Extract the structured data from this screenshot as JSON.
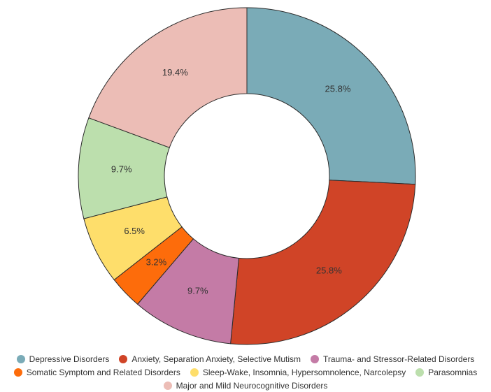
{
  "chart_data": {
    "type": "pie",
    "subtype": "donut",
    "title": "",
    "legend_position": "bottom",
    "slices": [
      {
        "label": "Depressive Disorders",
        "value": 25.8,
        "display": "25.8%",
        "color": "#7aabb7"
      },
      {
        "label": "Anxiety, Separation Anxiety, Selective Mutism",
        "value": 25.8,
        "display": "25.8%",
        "color": "#d04427"
      },
      {
        "label": "Trauma- and Stressor-Related Disorders",
        "value": 9.7,
        "display": "9.7%",
        "color": "#c47ba6"
      },
      {
        "label": "Somatic Symptom and Related Disorders",
        "value": 3.2,
        "display": "3.2%",
        "color": "#fd6c0b"
      },
      {
        "label": "Sleep-Wake, Insomnia, Hypersomnolence, Narcolepsy",
        "value": 6.5,
        "display": "6.5%",
        "color": "#fede6b"
      },
      {
        "label": "Parasomnias",
        "value": 9.7,
        "display": "9.7%",
        "color": "#bcdfad"
      },
      {
        "label": "Major and Mild Neurocognitive Disorders",
        "value": 19.4,
        "display": "19.4%",
        "color": "#ecbdb6"
      }
    ]
  }
}
